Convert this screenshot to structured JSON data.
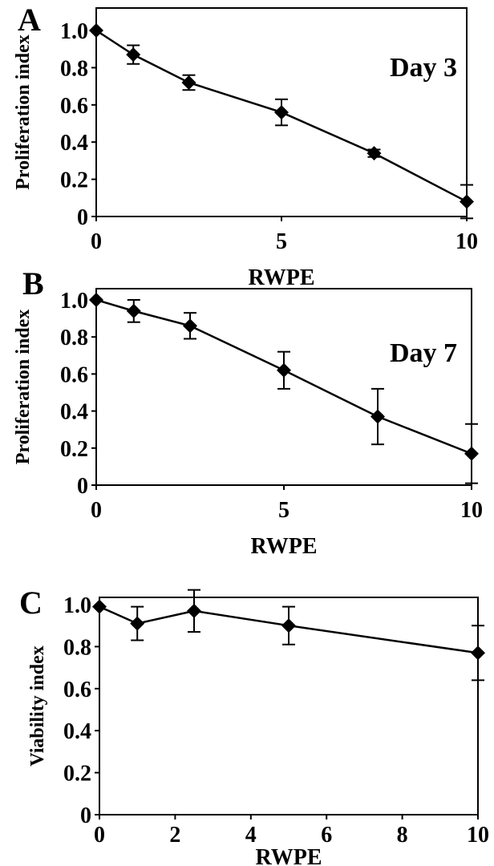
{
  "chart_data": [
    {
      "panel": "A",
      "type": "line",
      "annotation": "Day 3",
      "xlabel": "RWPE",
      "ylabel": "Proliferation index",
      "xlim": [
        0,
        10
      ],
      "ylim": [
        0,
        1
      ],
      "xticks": [
        "0",
        "5",
        "10"
      ],
      "yticks": [
        "0",
        "0.2",
        "0.4",
        "0.6",
        "0.8",
        "1.0"
      ],
      "grid": false,
      "series": [
        {
          "x": [
            0,
            1,
            2.5,
            5,
            7.5,
            10
          ],
          "y": [
            1.0,
            0.87,
            0.72,
            0.56,
            0.34,
            0.08
          ],
          "err": [
            0.0,
            0.05,
            0.04,
            0.07,
            0.02,
            0.09
          ]
        }
      ]
    },
    {
      "panel": "B",
      "type": "line",
      "annotation": "Day 7",
      "xlabel": "RWPE",
      "ylabel": "Proliferation index",
      "xlim": [
        0,
        10
      ],
      "ylim": [
        0,
        1
      ],
      "xticks": [
        "0",
        "5",
        "10"
      ],
      "yticks": [
        "0",
        "0.2",
        "0.4",
        "0.6",
        "0.8",
        "1.0"
      ],
      "grid": false,
      "series": [
        {
          "x": [
            0,
            1,
            2.5,
            5,
            7.5,
            10
          ],
          "y": [
            1.0,
            0.94,
            0.86,
            0.62,
            0.37,
            0.17
          ],
          "err": [
            0.0,
            0.06,
            0.07,
            0.1,
            0.15,
            0.16
          ]
        }
      ]
    },
    {
      "panel": "C",
      "type": "line",
      "annotation": "",
      "xlabel": "RWPE",
      "ylabel": "Viability index",
      "xlim": [
        0,
        10
      ],
      "ylim": [
        0,
        1.1
      ],
      "xticks": [
        "0",
        "2",
        "4",
        "6",
        "8",
        "10"
      ],
      "yticks": [
        "0",
        "0.2",
        "0.4",
        "0.6",
        "0.8",
        "1.0"
      ],
      "grid": false,
      "series": [
        {
          "x": [
            0,
            1,
            2.5,
            5,
            10
          ],
          "y": [
            0.99,
            0.91,
            0.97,
            0.9,
            0.77
          ],
          "err": [
            0.0,
            0.08,
            0.1,
            0.09,
            0.13
          ]
        }
      ]
    }
  ]
}
